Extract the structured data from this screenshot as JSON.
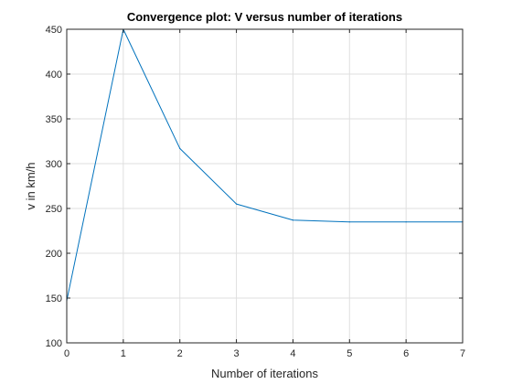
{
  "chart_data": {
    "type": "line",
    "title": "Convergence plot: V versus number of iterations",
    "xlabel": "Number of iterations",
    "ylabel": "v in km/h",
    "xlim": [
      0,
      7
    ],
    "ylim": [
      100,
      450
    ],
    "xticks": [
      "0",
      "1",
      "2",
      "3",
      "4",
      "5",
      "6",
      "7"
    ],
    "yticks": [
      "100",
      "150",
      "200",
      "250",
      "300",
      "350",
      "400",
      "450"
    ],
    "grid": true,
    "series": [
      {
        "x": [
          0,
          1,
          2,
          3,
          4,
          5,
          6,
          7
        ],
        "values": [
          147,
          450,
          317,
          255,
          237,
          235,
          235,
          235
        ]
      }
    ],
    "colors": {
      "line": "#0072BD",
      "grid": "#dfdfdf",
      "axis": "#262626"
    }
  }
}
